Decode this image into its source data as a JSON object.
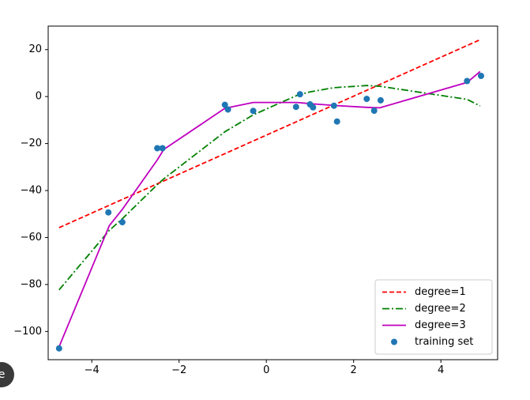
{
  "chart_data": {
    "type": "line",
    "title": "",
    "xlabel": "",
    "ylabel": "",
    "xlim": [
      -5,
      5.3
    ],
    "ylim": [
      -112,
      30
    ],
    "xticks": [
      -4,
      -2,
      0,
      2,
      4
    ],
    "yticks": [
      20,
      0,
      -20,
      -40,
      -60,
      -80,
      -100
    ],
    "xtick_labels": [
      "−4",
      "−2",
      "0",
      "2",
      "4"
    ],
    "ytick_labels": [
      "20",
      "0",
      "−20",
      "−40",
      "−60",
      "−80",
      "−100"
    ],
    "grid": false,
    "legend_position": "lower-right",
    "series": [
      {
        "name": "degree=1",
        "kind": "line",
        "style": "dashed",
        "color": "#ff0000",
        "x": [
          -4.75,
          4.9
        ],
        "y": [
          -55.8,
          24.2
        ]
      },
      {
        "name": "degree=2",
        "kind": "line",
        "style": "dashdot",
        "color": "#008000",
        "x": [
          -4.75,
          -3.6,
          -3.3,
          -2.5,
          -2.35,
          -0.95,
          -0.3,
          0.7,
          1.0,
          1.55,
          2.3,
          2.6,
          4.6,
          4.9
        ],
        "y": [
          -82.3,
          -57,
          -52,
          -37.5,
          -35,
          -15,
          -7.8,
          0.5,
          2,
          3.8,
          4.7,
          4.4,
          -1.2,
          -4
        ]
      },
      {
        "name": "degree=3",
        "kind": "line",
        "style": "solid",
        "color": "#bf00bf",
        "x": [
          -4.75,
          -3.6,
          -3.3,
          -2.5,
          -2.35,
          -0.95,
          -0.3,
          0.7,
          1.0,
          1.55,
          2.3,
          2.6,
          4.6,
          4.9
        ],
        "y": [
          -106.5,
          -55,
          -48,
          -27,
          -22.5,
          -5,
          -2.5,
          -2.5,
          -3,
          -3.8,
          -4.6,
          -4.8,
          6,
          10.7
        ]
      },
      {
        "name": "training set",
        "kind": "scatter",
        "color": "#1f77b4",
        "x": [
          -4.75,
          -3.62,
          -3.3,
          -2.5,
          -2.38,
          -0.95,
          -0.88,
          -0.3,
          0.68,
          0.77,
          1.0,
          1.07,
          1.55,
          1.62,
          2.3,
          2.47,
          2.62,
          4.6,
          4.92
        ],
        "y": [
          -107.2,
          -49.3,
          -53.5,
          -22,
          -22,
          -3.5,
          -5.5,
          -6.1,
          -4.4,
          1,
          -3.3,
          -4.6,
          -3.9,
          -10.6,
          -1,
          -6,
          -1.6,
          6.6,
          8.8
        ]
      }
    ]
  },
  "badge": {
    "label": "e"
  }
}
